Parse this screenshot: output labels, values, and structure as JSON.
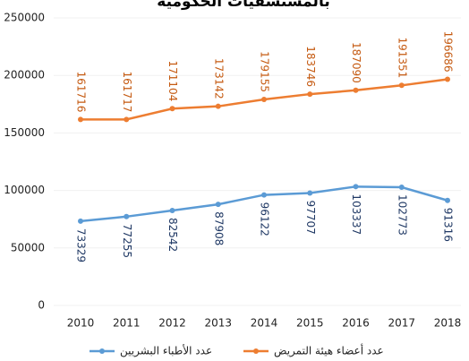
{
  "chart_data": {
    "type": "line",
    "title": "بالمستشفيات الحكومية",
    "categories": [
      "2010",
      "2011",
      "2012",
      "2013",
      "2014",
      "2015",
      "2016",
      "2017",
      "2018"
    ],
    "series": [
      {
        "name": "عدد الأطباء البشريين",
        "color": "#5b9bd5",
        "label_color": "#1f3864",
        "values": [
          73329,
          77255,
          82542,
          87908,
          96122,
          97707,
          103337,
          102773,
          91316
        ]
      },
      {
        "name": "عدد أعضاء هيئة التمريض",
        "color": "#ed7d31",
        "label_color": "#c55a11",
        "values": [
          161716,
          161717,
          171104,
          173142,
          179155,
          183746,
          187090,
          191351,
          196686
        ]
      }
    ],
    "ylim": [
      0,
      250000
    ],
    "yticks": [
      0,
      50000,
      100000,
      150000,
      200000,
      250000
    ],
    "grid": true
  }
}
